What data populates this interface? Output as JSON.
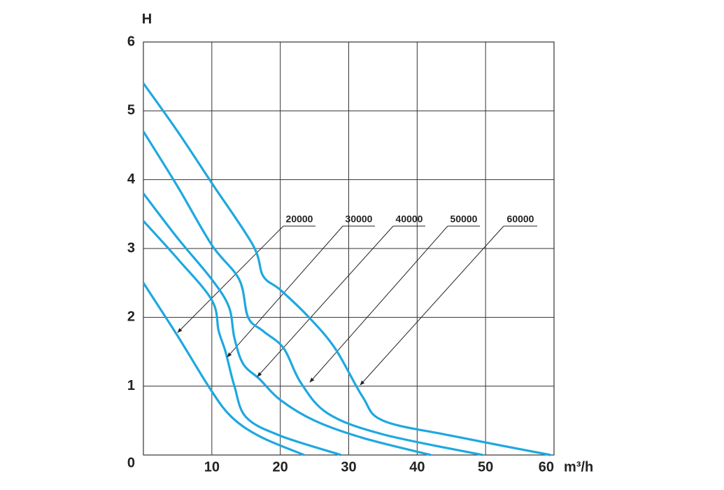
{
  "chart_data": {
    "type": "line",
    "y_label": "H",
    "x_label": "m³/h",
    "xlim": [
      0,
      60
    ],
    "ylim": [
      0,
      6
    ],
    "xticks": [
      10,
      20,
      30,
      40,
      50,
      60
    ],
    "yticks": [
      0,
      1,
      2,
      3,
      4,
      5,
      6
    ],
    "grid": true,
    "series": [
      {
        "name": "20000",
        "color": "#1ea8e0",
        "x": [
          0,
          5,
          9.7,
          12.8,
          17,
          23.5
        ],
        "values": [
          2.5,
          1.73,
          0.97,
          0.56,
          0.27,
          0
        ]
      },
      {
        "name": "30000",
        "color": "#1ea8e0",
        "x": [
          0,
          5,
          10,
          11,
          12,
          13.3,
          15,
          20,
          28.9
        ],
        "values": [
          3.4,
          2.85,
          2.25,
          1.8,
          1.5,
          1.0,
          0.55,
          0.28,
          0
        ]
      },
      {
        "name": "40000",
        "color": "#1ea8e0",
        "x": [
          0,
          5,
          10,
          12.5,
          13.3,
          14.6,
          17,
          20,
          25,
          32,
          42
        ],
        "values": [
          3.8,
          3.15,
          2.55,
          2.15,
          1.7,
          1.32,
          1.1,
          0.8,
          0.5,
          0.25,
          0
        ]
      },
      {
        "name": "50000",
        "color": "#1ea8e0",
        "x": [
          0,
          5,
          10,
          14,
          15.3,
          17.5,
          20.5,
          23,
          27,
          35,
          49.6
        ],
        "values": [
          4.7,
          3.9,
          3.05,
          2.55,
          2.0,
          1.8,
          1.55,
          1.05,
          0.6,
          0.3,
          0
        ]
      },
      {
        "name": "60000",
        "color": "#1ea8e0",
        "x": [
          0,
          5,
          10,
          16,
          17.5,
          20,
          24,
          28,
          32,
          35,
          45,
          59.5
        ],
        "values": [
          5.4,
          4.7,
          3.95,
          3.05,
          2.6,
          2.4,
          2.02,
          1.55,
          0.85,
          0.5,
          0.28,
          0
        ]
      }
    ]
  }
}
